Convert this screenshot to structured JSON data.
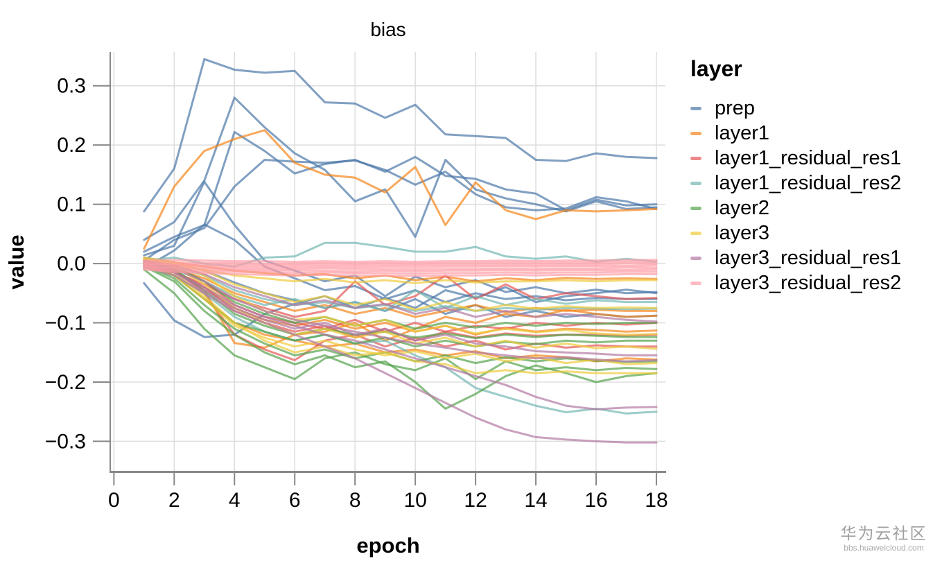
{
  "watermark": {
    "title": "华为云社区",
    "subtitle": "bbs.huaweicloud.com"
  },
  "chart_data": {
    "type": "line",
    "title": "bias",
    "xlabel": "epoch",
    "ylabel": "value",
    "legend_title": "layer",
    "legend_position": "right",
    "grid": true,
    "line_opacity": 0.7,
    "xlim": [
      -0.1,
      18.3
    ],
    "ylim": [
      -0.351,
      0.357
    ],
    "x": [
      1,
      2,
      3,
      4,
      5,
      6,
      7,
      8,
      9,
      10,
      11,
      12,
      13,
      14,
      15,
      16,
      17,
      18
    ],
    "x_ticks": [
      {
        "v": 0,
        "label": "0"
      },
      {
        "v": 2,
        "label": "2"
      },
      {
        "v": 4,
        "label": "4"
      },
      {
        "v": 6,
        "label": "6"
      },
      {
        "v": 8,
        "label": "8"
      },
      {
        "v": 10,
        "label": "10"
      },
      {
        "v": 12,
        "label": "12"
      },
      {
        "v": 14,
        "label": "14"
      },
      {
        "v": 16,
        "label": "16"
      },
      {
        "v": 18,
        "label": "18"
      }
    ],
    "y_ticks": [
      {
        "v": 0.3,
        "label": "0.3"
      },
      {
        "v": 0.2,
        "label": "0.2"
      },
      {
        "v": 0.1,
        "label": "0.1"
      },
      {
        "v": 0.0,
        "label": "0.0"
      },
      {
        "v": -0.1,
        "label": "−0.1"
      },
      {
        "v": -0.2,
        "label": "−0.2"
      },
      {
        "v": -0.3,
        "label": "−0.3"
      }
    ],
    "groups": [
      {
        "name": "prep",
        "color": "#4c78a8",
        "series": [
          [
            0.088,
            0.16,
            0.345,
            0.327,
            0.322,
            0.325,
            0.272,
            0.27,
            0.246,
            0.268,
            0.218,
            0.215,
            0.212,
            0.175,
            0.173,
            0.186,
            0.18,
            0.178
          ],
          [
            0.04,
            0.07,
            0.14,
            0.28,
            0.23,
            0.186,
            0.158,
            0.105,
            0.125,
            0.045,
            0.175,
            0.125,
            0.11,
            0.1,
            0.088,
            0.105,
            0.092,
            0.095
          ],
          [
            0.02,
            0.045,
            0.065,
            0.222,
            0.19,
            0.152,
            0.168,
            0.175,
            0.155,
            0.18,
            0.148,
            0.143,
            0.125,
            0.118,
            0.09,
            0.108,
            0.098,
            0.1
          ],
          [
            0.005,
            0.04,
            0.06,
            0.13,
            0.175,
            0.172,
            0.17,
            0.174,
            0.158,
            0.133,
            0.155,
            0.117,
            0.095,
            0.09,
            0.093,
            0.112,
            0.105,
            0.092
          ],
          [
            0.014,
            0.03,
            0.138,
            0.065,
            0.005,
            -0.012,
            -0.03,
            -0.02,
            -0.055,
            -0.022,
            -0.04,
            -0.028,
            -0.048,
            -0.04,
            -0.05,
            -0.044,
            -0.05,
            -0.048
          ],
          [
            -0.008,
            0.022,
            0.066,
            0.04,
            -0.005,
            -0.025,
            -0.045,
            -0.038,
            -0.06,
            -0.045,
            -0.065,
            -0.05,
            -0.06,
            -0.055,
            -0.062,
            -0.058,
            -0.06,
            -0.06
          ],
          [
            -0.033,
            -0.096,
            -0.124,
            -0.12,
            -0.085,
            -0.068,
            -0.055,
            -0.075,
            -0.058,
            -0.075,
            -0.045,
            -0.058,
            -0.04,
            -0.065,
            -0.055,
            -0.05,
            -0.044,
            -0.05
          ],
          [
            0.01,
            0.002,
            -0.012,
            -0.032,
            -0.05,
            -0.062,
            -0.075,
            -0.065,
            -0.08,
            -0.06,
            -0.085,
            -0.07,
            -0.09,
            -0.08,
            -0.09,
            -0.085,
            -0.09,
            -0.088
          ]
        ]
      },
      {
        "name": "layer1",
        "color": "#f58518",
        "series": [
          [
            0.025,
            0.13,
            0.19,
            0.21,
            0.225,
            0.17,
            0.15,
            0.145,
            0.12,
            0.163,
            0.065,
            0.137,
            0.09,
            0.075,
            0.09,
            0.088,
            0.09,
            0.092
          ],
          [
            0.005,
            -0.012,
            -0.045,
            -0.134,
            -0.142,
            -0.12,
            -0.115,
            -0.1,
            -0.13,
            -0.11,
            -0.09,
            -0.1,
            -0.085,
            -0.09,
            -0.078,
            -0.085,
            -0.09,
            -0.088
          ],
          [
            0.0,
            -0.02,
            -0.06,
            -0.1,
            -0.12,
            -0.13,
            -0.14,
            -0.135,
            -0.15,
            -0.145,
            -0.155,
            -0.148,
            -0.16,
            -0.155,
            -0.158,
            -0.165,
            -0.16,
            -0.162
          ],
          [
            0.008,
            0.002,
            -0.005,
            -0.012,
            -0.016,
            -0.02,
            -0.018,
            -0.025,
            -0.02,
            -0.028,
            -0.022,
            -0.03,
            -0.025,
            -0.028,
            -0.024,
            -0.026,
            -0.025,
            -0.026
          ],
          [
            0.002,
            -0.008,
            -0.025,
            -0.05,
            -0.065,
            -0.08,
            -0.07,
            -0.085,
            -0.075,
            -0.09,
            -0.08,
            -0.07,
            -0.082,
            -0.075,
            -0.08,
            -0.078,
            -0.08,
            -0.08
          ],
          [
            -0.005,
            -0.015,
            -0.04,
            -0.075,
            -0.095,
            -0.105,
            -0.095,
            -0.11,
            -0.1,
            -0.115,
            -0.105,
            -0.12,
            -0.108,
            -0.115,
            -0.11,
            -0.112,
            -0.115,
            -0.113
          ]
        ]
      },
      {
        "name": "layer1_residual_res1",
        "color": "#e45756",
        "series": [
          [
            -0.005,
            -0.015,
            -0.035,
            -0.06,
            -0.075,
            -0.09,
            -0.08,
            -0.03,
            -0.07,
            -0.055,
            -0.02,
            -0.06,
            -0.035,
            -0.06,
            -0.05,
            -0.055,
            -0.06,
            -0.058
          ],
          [
            0.0,
            -0.01,
            -0.05,
            -0.12,
            -0.145,
            -0.163,
            -0.13,
            -0.12,
            -0.14,
            -0.125,
            -0.14,
            -0.13,
            -0.145,
            -0.135,
            -0.142,
            -0.138,
            -0.14,
            -0.14
          ],
          [
            0.003,
            -0.005,
            -0.03,
            -0.07,
            -0.09,
            -0.1,
            -0.11,
            -0.095,
            -0.115,
            -0.1,
            -0.115,
            -0.105,
            -0.11,
            -0.1,
            -0.105,
            -0.1,
            -0.103,
            -0.1
          ],
          [
            -0.002,
            -0.012,
            -0.04,
            -0.08,
            -0.1,
            -0.115,
            -0.105,
            -0.125,
            -0.11,
            -0.13,
            -0.115,
            -0.125,
            -0.118,
            -0.122,
            -0.12,
            -0.12,
            -0.122,
            -0.12
          ]
        ]
      },
      {
        "name": "layer1_residual_res2",
        "color": "#72b7b2",
        "series": [
          [
            0.005,
            0.01,
            0.0,
            -0.005,
            0.01,
            0.012,
            0.035,
            0.035,
            0.028,
            0.02,
            0.02,
            0.028,
            0.012,
            0.008,
            0.012,
            0.003,
            0.008,
            0.003
          ],
          [
            -0.005,
            -0.02,
            -0.05,
            -0.09,
            -0.115,
            -0.13,
            -0.12,
            -0.135,
            -0.13,
            -0.155,
            -0.175,
            -0.21,
            -0.225,
            -0.24,
            -0.251,
            -0.245,
            -0.253,
            -0.25
          ],
          [
            0.0,
            -0.01,
            -0.03,
            -0.055,
            -0.07,
            -0.06,
            -0.075,
            -0.065,
            -0.08,
            -0.045,
            -0.075,
            -0.055,
            -0.07,
            -0.06,
            -0.068,
            -0.062,
            -0.065,
            -0.065
          ],
          [
            0.002,
            -0.005,
            -0.02,
            -0.045,
            -0.06,
            -0.07,
            -0.065,
            -0.075,
            -0.07,
            -0.08,
            -0.072,
            -0.08,
            -0.075,
            -0.078,
            -0.075,
            -0.076,
            -0.077,
            -0.076
          ]
        ]
      },
      {
        "name": "layer2",
        "color": "#54a24b",
        "series": [
          [
            -0.01,
            -0.05,
            -0.11,
            -0.155,
            -0.175,
            -0.195,
            -0.16,
            -0.15,
            -0.17,
            -0.18,
            -0.16,
            -0.195,
            -0.165,
            -0.18,
            -0.175,
            -0.18,
            -0.176,
            -0.178
          ],
          [
            -0.005,
            -0.03,
            -0.08,
            -0.12,
            -0.15,
            -0.17,
            -0.155,
            -0.175,
            -0.165,
            -0.2,
            -0.245,
            -0.22,
            -0.19,
            -0.172,
            -0.185,
            -0.2,
            -0.19,
            -0.185
          ],
          [
            0.0,
            -0.02,
            -0.06,
            -0.1,
            -0.115,
            -0.13,
            -0.12,
            -0.135,
            -0.125,
            -0.14,
            -0.13,
            -0.14,
            -0.132,
            -0.136,
            -0.13,
            -0.133,
            -0.13,
            -0.13
          ],
          [
            0.003,
            -0.01,
            -0.045,
            -0.085,
            -0.105,
            -0.12,
            -0.11,
            -0.12,
            -0.115,
            -0.125,
            -0.118,
            -0.126,
            -0.12,
            -0.124,
            -0.12,
            -0.122,
            -0.124,
            -0.124
          ],
          [
            -0.003,
            -0.025,
            -0.07,
            -0.11,
            -0.135,
            -0.155,
            -0.145,
            -0.16,
            -0.15,
            -0.165,
            -0.155,
            -0.168,
            -0.158,
            -0.165,
            -0.16,
            -0.164,
            -0.166,
            -0.165
          ],
          [
            0.005,
            -0.005,
            -0.03,
            -0.065,
            -0.085,
            -0.1,
            -0.09,
            -0.105,
            -0.095,
            -0.11,
            -0.1,
            -0.108,
            -0.1,
            -0.105,
            -0.1,
            -0.102,
            -0.1,
            -0.1
          ]
        ]
      },
      {
        "name": "layer3",
        "color": "#eeca3b",
        "series": [
          [
            0.0,
            -0.015,
            -0.055,
            -0.1,
            -0.13,
            -0.15,
            -0.14,
            -0.155,
            -0.15,
            -0.165,
            -0.17,
            -0.185,
            -0.18,
            -0.185,
            -0.182,
            -0.185,
            -0.185,
            -0.185
          ],
          [
            0.005,
            -0.005,
            -0.035,
            -0.075,
            -0.1,
            -0.12,
            -0.11,
            -0.125,
            -0.115,
            -0.135,
            -0.125,
            -0.14,
            -0.13,
            -0.142,
            -0.135,
            -0.143,
            -0.14,
            -0.144
          ],
          [
            0.008,
            0.0,
            -0.02,
            -0.055,
            -0.08,
            -0.095,
            -0.09,
            -0.105,
            -0.095,
            -0.115,
            -0.105,
            -0.118,
            -0.11,
            -0.116,
            -0.112,
            -0.118,
            -0.12,
            -0.119
          ],
          [
            -0.002,
            -0.02,
            -0.06,
            -0.105,
            -0.125,
            -0.14,
            -0.13,
            -0.145,
            -0.155,
            -0.148,
            -0.16,
            -0.152,
            -0.165,
            -0.158,
            -0.168,
            -0.162,
            -0.17,
            -0.168
          ],
          [
            0.01,
            0.002,
            -0.012,
            -0.035,
            -0.05,
            -0.065,
            -0.055,
            -0.07,
            -0.06,
            -0.078,
            -0.065,
            -0.08,
            -0.07,
            -0.076,
            -0.072,
            -0.075,
            -0.074,
            -0.075
          ],
          [
            0.004,
            -0.002,
            -0.01,
            -0.02,
            -0.025,
            -0.03,
            -0.026,
            -0.032,
            -0.028,
            -0.033,
            -0.028,
            -0.032,
            -0.03,
            -0.03,
            -0.028,
            -0.03,
            -0.028,
            -0.028
          ]
        ]
      },
      {
        "name": "layer3_residual_res1",
        "color": "#b279a2",
        "series": [
          [
            -0.005,
            -0.02,
            -0.05,
            -0.08,
            -0.1,
            -0.12,
            -0.14,
            -0.16,
            -0.185,
            -0.21,
            -0.235,
            -0.26,
            -0.28,
            -0.293,
            -0.297,
            -0.3,
            -0.302,
            -0.302
          ],
          [
            0.0,
            -0.015,
            -0.04,
            -0.07,
            -0.09,
            -0.105,
            -0.12,
            -0.13,
            -0.145,
            -0.16,
            -0.175,
            -0.19,
            -0.205,
            -0.225,
            -0.24,
            -0.246,
            -0.243,
            -0.242
          ],
          [
            0.003,
            -0.008,
            -0.03,
            -0.06,
            -0.08,
            -0.095,
            -0.105,
            -0.115,
            -0.125,
            -0.135,
            -0.142,
            -0.15,
            -0.155,
            -0.16,
            -0.158,
            -0.162,
            -0.165,
            -0.163
          ],
          [
            -0.002,
            -0.015,
            -0.045,
            -0.075,
            -0.095,
            -0.11,
            -0.1,
            -0.12,
            -0.11,
            -0.13,
            -0.12,
            -0.135,
            -0.14,
            -0.148,
            -0.15,
            -0.152,
            -0.155,
            -0.155
          ],
          [
            0.005,
            -0.003,
            -0.018,
            -0.04,
            -0.055,
            -0.07,
            -0.062,
            -0.075,
            -0.068,
            -0.085,
            -0.075,
            -0.09,
            -0.08,
            -0.09,
            -0.085,
            -0.09,
            -0.095,
            -0.098
          ]
        ]
      },
      {
        "name": "layer3_residual_res2",
        "color": "#ff9da6",
        "series": [
          [
            0.005,
            0.006,
            0.005,
            0.004,
            0.004,
            0.003,
            0.004,
            0.003,
            0.004,
            0.003,
            0.004,
            0.004,
            0.005,
            0.004,
            0.005,
            0.005,
            0.006,
            0.006
          ],
          [
            0.002,
            0.002,
            0.001,
            0.001,
            0.0,
            0.0,
            0.001,
            0.0,
            0.001,
            0.0,
            0.001,
            0.001,
            0.002,
            0.001,
            0.002,
            0.002,
            0.003,
            0.003
          ],
          [
            0.0,
            -0.001,
            -0.002,
            -0.002,
            -0.003,
            -0.003,
            -0.002,
            -0.003,
            -0.002,
            -0.003,
            -0.002,
            -0.002,
            -0.001,
            -0.002,
            -0.001,
            -0.001,
            0.0,
            0.0
          ],
          [
            -0.002,
            -0.003,
            -0.004,
            -0.005,
            -0.006,
            -0.006,
            -0.005,
            -0.006,
            -0.005,
            -0.006,
            -0.005,
            -0.005,
            -0.004,
            -0.005,
            -0.004,
            -0.004,
            -0.004,
            -0.003
          ],
          [
            -0.004,
            -0.006,
            -0.007,
            -0.008,
            -0.009,
            -0.009,
            -0.008,
            -0.009,
            -0.009,
            -0.01,
            -0.009,
            -0.009,
            -0.008,
            -0.009,
            -0.008,
            -0.008,
            -0.007,
            -0.007
          ],
          [
            -0.006,
            -0.008,
            -0.01,
            -0.011,
            -0.012,
            -0.012,
            -0.012,
            -0.013,
            -0.012,
            -0.013,
            -0.012,
            -0.012,
            -0.011,
            -0.012,
            -0.011,
            -0.011,
            -0.011,
            -0.01
          ],
          [
            -0.008,
            -0.011,
            -0.013,
            -0.014,
            -0.015,
            -0.016,
            -0.015,
            -0.016,
            -0.016,
            -0.017,
            -0.016,
            -0.016,
            -0.015,
            -0.016,
            -0.015,
            -0.015,
            -0.014,
            -0.014
          ],
          [
            -0.01,
            -0.014,
            -0.016,
            -0.018,
            -0.019,
            -0.02,
            -0.019,
            -0.02,
            -0.02,
            -0.021,
            -0.02,
            -0.02,
            -0.019,
            -0.02,
            -0.019,
            -0.019,
            -0.018,
            -0.018
          ]
        ]
      }
    ]
  }
}
